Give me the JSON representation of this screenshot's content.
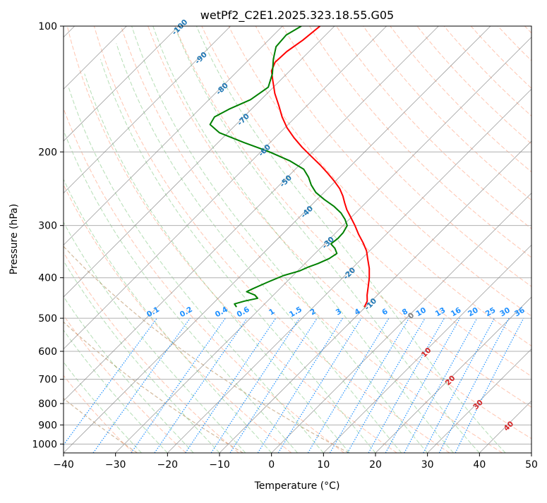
{
  "chart_data": {
    "type": "line",
    "chart_kind": "skew-T log-P diagram",
    "title": "wetPf2_C2E1.2025.323.18.55.G05",
    "xlabel": "Temperature (°C)",
    "ylabel": "Pressure (hPa)",
    "xlim": [
      -40,
      50
    ],
    "ylim": [
      1050,
      100
    ],
    "yscale": "log",
    "skew": 35,
    "x_ticks": [
      -40,
      -30,
      -20,
      -10,
      0,
      10,
      20,
      30,
      40,
      50
    ],
    "x_tick_labels": [
      "−40",
      "−30",
      "−20",
      "−10",
      "0",
      "10",
      "20",
      "30",
      "40",
      "50"
    ],
    "y_ticks": [
      100,
      200,
      300,
      400,
      500,
      600,
      700,
      800,
      900,
      1000
    ],
    "y_tick_labels": [
      "100",
      "200",
      "300",
      "400",
      "500",
      "600",
      "700",
      "800",
      "900",
      "1000"
    ],
    "grid": true,
    "colors": {
      "temperature": "#ff0000",
      "dewpoint": "#008000",
      "mixing_ratio": "#1e90ff",
      "dry_adiabat": "#ff7f50",
      "moist_adiabat": "#2ca02c",
      "isotherm_labels": "#1f77b4",
      "isotherm_labels_warm": "#d62728",
      "isotherm_zero": "#808080",
      "isobar_grid": "#b0b0b0",
      "isotherm_grid": "#808080",
      "ice_curves": "#c8a882"
    },
    "series": [
      {
        "role": "temperature",
        "color": "#ff0000",
        "points": [
          {
            "p": 470,
            "t": -10.2
          },
          {
            "p": 455,
            "t": -10.8
          },
          {
            "p": 440,
            "t": -12.0
          },
          {
            "p": 420,
            "t": -13.4
          },
          {
            "p": 400,
            "t": -14.9
          },
          {
            "p": 380,
            "t": -16.7
          },
          {
            "p": 360,
            "t": -18.9
          },
          {
            "p": 345,
            "t": -20.6
          },
          {
            "p": 330,
            "t": -22.8
          },
          {
            "p": 315,
            "t": -25.3
          },
          {
            "p": 300,
            "t": -27.7
          },
          {
            "p": 285,
            "t": -30.4
          },
          {
            "p": 275,
            "t": -32.3
          },
          {
            "p": 265,
            "t": -34.0
          },
          {
            "p": 255,
            "t": -35.7
          },
          {
            "p": 245,
            "t": -37.7
          },
          {
            "p": 235,
            "t": -40.2
          },
          {
            "p": 225,
            "t": -43.0
          },
          {
            "p": 215,
            "t": -46.0
          },
          {
            "p": 205,
            "t": -49.4
          },
          {
            "p": 195,
            "t": -52.9
          },
          {
            "p": 185,
            "t": -56.3
          },
          {
            "p": 175,
            "t": -59.6
          },
          {
            "p": 165,
            "t": -62.6
          },
          {
            "p": 155,
            "t": -65.4
          },
          {
            "p": 145,
            "t": -68.5
          },
          {
            "p": 135,
            "t": -71.4
          },
          {
            "p": 128,
            "t": -73.5
          },
          {
            "p": 122,
            "t": -74.5
          },
          {
            "p": 115,
            "t": -74.3
          },
          {
            "p": 108,
            "t": -73.4
          },
          {
            "p": 100,
            "t": -72.8
          }
        ]
      },
      {
        "role": "dewpoint",
        "color": "#008000",
        "points": [
          {
            "p": 470,
            "t": -34.8
          },
          {
            "p": 462,
            "t": -35.8
          },
          {
            "p": 455,
            "t": -34.4
          },
          {
            "p": 448,
            "t": -32.4
          },
          {
            "p": 440,
            "t": -33.6
          },
          {
            "p": 432,
            "t": -35.8
          },
          {
            "p": 425,
            "t": -35.2
          },
          {
            "p": 410,
            "t": -33.6
          },
          {
            "p": 395,
            "t": -31.8
          },
          {
            "p": 385,
            "t": -29.6
          },
          {
            "p": 378,
            "t": -28.8
          },
          {
            "p": 370,
            "t": -27.5
          },
          {
            "p": 360,
            "t": -26.3
          },
          {
            "p": 350,
            "t": -25.8
          },
          {
            "p": 340,
            "t": -27.2
          },
          {
            "p": 332,
            "t": -28.8
          },
          {
            "p": 322,
            "t": -28.5
          },
          {
            "p": 312,
            "t": -28.6
          },
          {
            "p": 300,
            "t": -29.2
          },
          {
            "p": 290,
            "t": -30.8
          },
          {
            "p": 280,
            "t": -32.8
          },
          {
            "p": 270,
            "t": -35.4
          },
          {
            "p": 260,
            "t": -38.6
          },
          {
            "p": 250,
            "t": -41.6
          },
          {
            "p": 240,
            "t": -43.9
          },
          {
            "p": 230,
            "t": -45.9
          },
          {
            "p": 220,
            "t": -48.4
          },
          {
            "p": 210,
            "t": -52.7
          },
          {
            "p": 200,
            "t": -58.3
          },
          {
            "p": 190,
            "t": -65.0
          },
          {
            "p": 180,
            "t": -71.6
          },
          {
            "p": 172,
            "t": -75.0
          },
          {
            "p": 165,
            "t": -75.6
          },
          {
            "p": 158,
            "t": -74.3
          },
          {
            "p": 150,
            "t": -72.0
          },
          {
            "p": 140,
            "t": -71.0
          },
          {
            "p": 130,
            "t": -72.8
          },
          {
            "p": 120,
            "t": -75.4
          },
          {
            "p": 112,
            "t": -77.3
          },
          {
            "p": 105,
            "t": -77.6
          },
          {
            "p": 100,
            "t": -76.4
          }
        ]
      }
    ],
    "isotherm_labels": [
      "-100",
      "-90",
      "-80",
      "-70",
      "-60",
      "-50",
      "-40",
      "-30",
      "-20",
      "-10",
      "0",
      "10",
      "20",
      "30",
      "40"
    ],
    "mixing_ratio_labels": [
      "0.1",
      "0.2",
      "0.4",
      "0.6",
      "1",
      "1.5",
      "2",
      "3",
      "4",
      "6",
      "8",
      "10",
      "13",
      "16",
      "20",
      "25",
      "30",
      "36"
    ]
  }
}
